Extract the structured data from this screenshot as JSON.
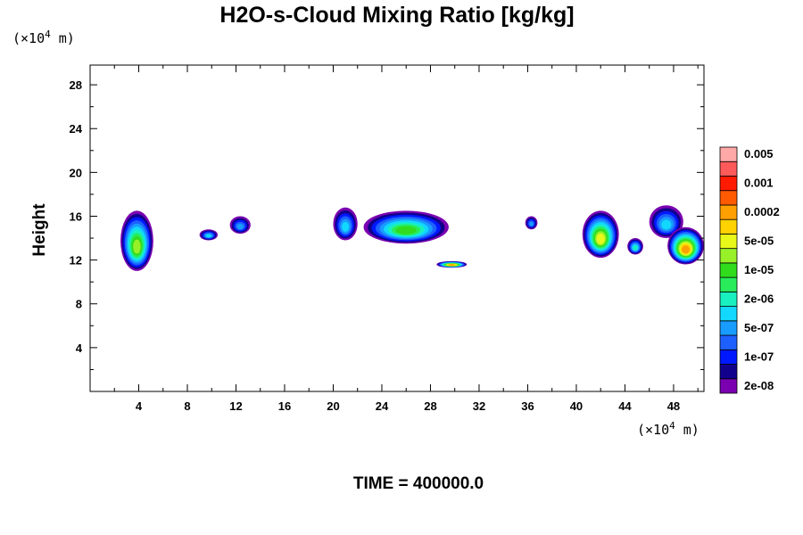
{
  "chart_data": {
    "type": "contour",
    "title": "H2O-s-Cloud Mixing Ratio [kg/kg]",
    "ylabel": "Height",
    "xlabel": "",
    "x_unit_label": "(×10",
    "x_unit_exp": "4",
    "x_unit_suffix": " m)",
    "y_unit_label": "(×10",
    "y_unit_exp": "4",
    "y_unit_suffix": " m)",
    "xlim": [
      0,
      50.5
    ],
    "ylim": [
      0,
      29.8
    ],
    "x_ticks": [
      4,
      8,
      12,
      16,
      20,
      24,
      28,
      32,
      36,
      40,
      44,
      48
    ],
    "y_ticks": [
      4,
      8,
      12,
      16,
      20,
      24,
      28
    ],
    "footer": "TIME = 400000.0",
    "colorbar": {
      "colors": [
        "#7a00b0",
        "#10008c",
        "#0018ff",
        "#1e60ff",
        "#189cff",
        "#12d8ff",
        "#18f0c0",
        "#28ec5a",
        "#30dc1c",
        "#98f028",
        "#e8f818",
        "#ffd200",
        "#ffa000",
        "#ff5a00",
        "#ff1a00",
        "#ff5a5a",
        "#ffa8a8"
      ],
      "labels": [
        {
          "text": "2e-08",
          "level": 1
        },
        {
          "text": "1e-07",
          "level": 3
        },
        {
          "text": "5e-07",
          "level": 5
        },
        {
          "text": "2e-06",
          "level": 7
        },
        {
          "text": "1e-05",
          "level": 9
        },
        {
          "text": "5e-05",
          "level": 11
        },
        {
          "text": "0.0002",
          "level": 13
        },
        {
          "text": "0.001",
          "level": 15
        },
        {
          "text": "0.005",
          "level": 17
        }
      ]
    },
    "cloud_regions": [
      {
        "x_range": [
          2.5,
          5.2
        ],
        "y_range": [
          11.0,
          16.5
        ],
        "max_level": 10
      },
      {
        "x_range": [
          9.0,
          10.5
        ],
        "y_range": [
          13.8,
          14.8
        ],
        "max_level": 6
      },
      {
        "x_range": [
          11.5,
          13.2
        ],
        "y_range": [
          14.4,
          16.0
        ],
        "max_level": 5
      },
      {
        "x_range": [
          20.0,
          22.0
        ],
        "y_range": [
          13.8,
          16.8
        ],
        "max_level": 6
      },
      {
        "x_range": [
          22.5,
          29.5
        ],
        "y_range": [
          13.5,
          16.5
        ],
        "max_level": 9
      },
      {
        "x_range": [
          28.5,
          31.0
        ],
        "y_range": [
          11.3,
          11.9
        ],
        "max_level": 13
      },
      {
        "x_range": [
          35.8,
          36.8
        ],
        "y_range": [
          14.8,
          16.0
        ],
        "max_level": 5
      },
      {
        "x_range": [
          40.5,
          43.5
        ],
        "y_range": [
          12.2,
          16.5
        ],
        "max_level": 11
      },
      {
        "x_range": [
          44.2,
          45.5
        ],
        "y_range": [
          12.5,
          14.0
        ],
        "max_level": 7
      },
      {
        "x_range": [
          46.0,
          48.8
        ],
        "y_range": [
          14.0,
          17.0
        ],
        "max_level": 6
      },
      {
        "x_range": [
          47.5,
          50.5
        ],
        "y_range": [
          11.6,
          15.0
        ],
        "max_level": 13
      }
    ]
  }
}
